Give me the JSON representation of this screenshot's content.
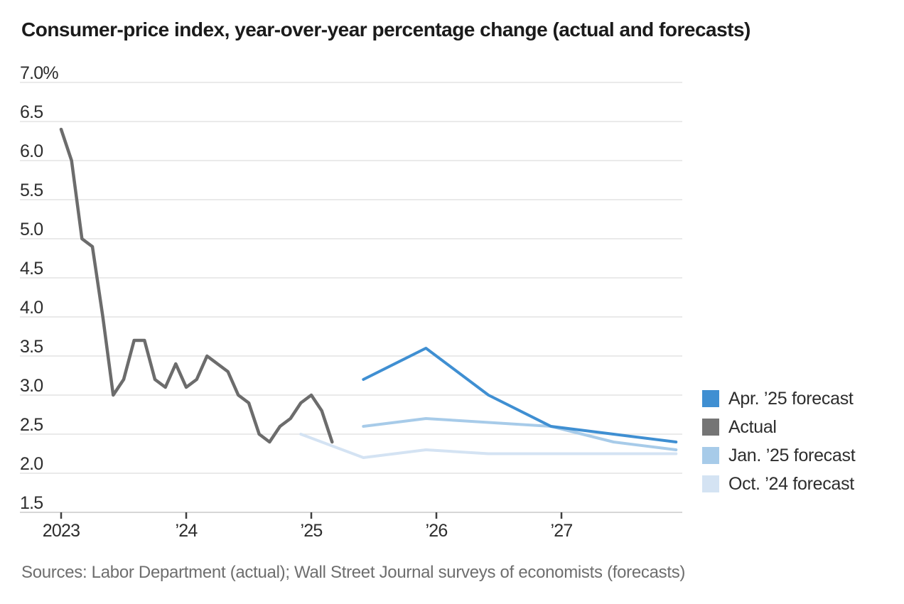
{
  "title": "Consumer-price index, year-over-year percentage change (actual and forecasts)",
  "source_note": "Sources: Labor Department (actual); Wall Street Journal surveys of economists (forecasts)",
  "colors": {
    "background": "#ffffff",
    "title_text": "#1b1b1b",
    "axis_text": "#2d2d2d",
    "source_text": "#6e6e6e",
    "legend_text": "#2d2d2d",
    "gridline": "#e3e3e3",
    "axis_baseline": "#d6d6d6",
    "tick": "#3f3f3f",
    "apr25_blue": "#3f8fd2",
    "actual_gray": "#6c6c6c",
    "actual_swatch_gray": "#757575",
    "jan25_blue": "#a7cbe9",
    "oct24_blue": "#d4e3f3"
  },
  "legend": {
    "items": [
      {
        "label": "Apr. ’25 forecast",
        "color": "#3f8fd2"
      },
      {
        "label": "Actual",
        "color": "#757575"
      },
      {
        "label": "Jan. ’25 forecast",
        "color": "#a7cbe9"
      },
      {
        "label": "Oct. ’24 forecast",
        "color": "#d4e3f3"
      }
    ]
  },
  "chart_data": {
    "type": "line",
    "title": "Consumer-price index, year-over-year percentage change (actual and forecasts)",
    "xlabel": "",
    "ylabel": "Year-over-year percentage change",
    "grid": "horizontal",
    "legend_position": "right",
    "y_axis": {
      "min": 1.5,
      "max": 7.0,
      "ticks": [
        {
          "value": 7.0,
          "label": "7.0%"
        },
        {
          "value": 6.5,
          "label": "6.5"
        },
        {
          "value": 6.0,
          "label": "6.0"
        },
        {
          "value": 5.5,
          "label": "5.5"
        },
        {
          "value": 5.0,
          "label": "5.0"
        },
        {
          "value": 4.5,
          "label": "4.5"
        },
        {
          "value": 4.0,
          "label": "4.0"
        },
        {
          "value": 3.5,
          "label": "3.5"
        },
        {
          "value": 3.0,
          "label": "3.0"
        },
        {
          "value": 2.5,
          "label": "2.5"
        },
        {
          "value": 2.0,
          "label": "2.0"
        },
        {
          "value": 1.5,
          "label": "1.5"
        }
      ]
    },
    "x_axis": {
      "min_date": "2023-01",
      "max_date": "2027-12",
      "ticks": [
        {
          "date": "2023-01",
          "label": "2023"
        },
        {
          "date": "2024-01",
          "label": "’24"
        },
        {
          "date": "2025-01",
          "label": "’25"
        },
        {
          "date": "2026-01",
          "label": "’26"
        },
        {
          "date": "2027-01",
          "label": "’27"
        }
      ]
    },
    "series": [
      {
        "name": "Oct. ’24 forecast",
        "color": "#d4e3f3",
        "stroke_width": 4,
        "dates": [
          "2024-12",
          "2025-06",
          "2025-12",
          "2026-06",
          "2026-12",
          "2027-06",
          "2027-12"
        ],
        "values": [
          2.5,
          2.2,
          2.3,
          2.25,
          2.25,
          2.25,
          2.25
        ]
      },
      {
        "name": "Jan. ’25 forecast",
        "color": "#a7cbe9",
        "stroke_width": 4,
        "dates": [
          "2025-06",
          "2025-12",
          "2026-06",
          "2026-12",
          "2027-06",
          "2027-12"
        ],
        "values": [
          2.6,
          2.7,
          2.65,
          2.6,
          2.4,
          2.3
        ]
      },
      {
        "name": "Actual",
        "color": "#6c6c6c",
        "stroke_width": 4.5,
        "dates": [
          "2023-01",
          "2023-02",
          "2023-03",
          "2023-04",
          "2023-05",
          "2023-06",
          "2023-07",
          "2023-08",
          "2023-09",
          "2023-10",
          "2023-11",
          "2023-12",
          "2024-01",
          "2024-02",
          "2024-03",
          "2024-04",
          "2024-05",
          "2024-06",
          "2024-07",
          "2024-08",
          "2024-09",
          "2024-10",
          "2024-11",
          "2024-12",
          "2025-01",
          "2025-02",
          "2025-03"
        ],
        "values": [
          6.4,
          6.0,
          5.0,
          4.9,
          4.0,
          3.0,
          3.2,
          3.7,
          3.7,
          3.2,
          3.1,
          3.4,
          3.1,
          3.2,
          3.5,
          3.4,
          3.3,
          3.0,
          2.9,
          2.5,
          2.4,
          2.6,
          2.7,
          2.9,
          3.0,
          2.8,
          2.4
        ]
      },
      {
        "name": "Apr. ’25 forecast",
        "color": "#3f8fd2",
        "stroke_width": 4,
        "dates": [
          "2025-06",
          "2025-12",
          "2026-06",
          "2026-12",
          "2027-06",
          "2027-12"
        ],
        "values": [
          3.2,
          3.6,
          3.0,
          2.6,
          2.5,
          2.4
        ]
      }
    ]
  }
}
